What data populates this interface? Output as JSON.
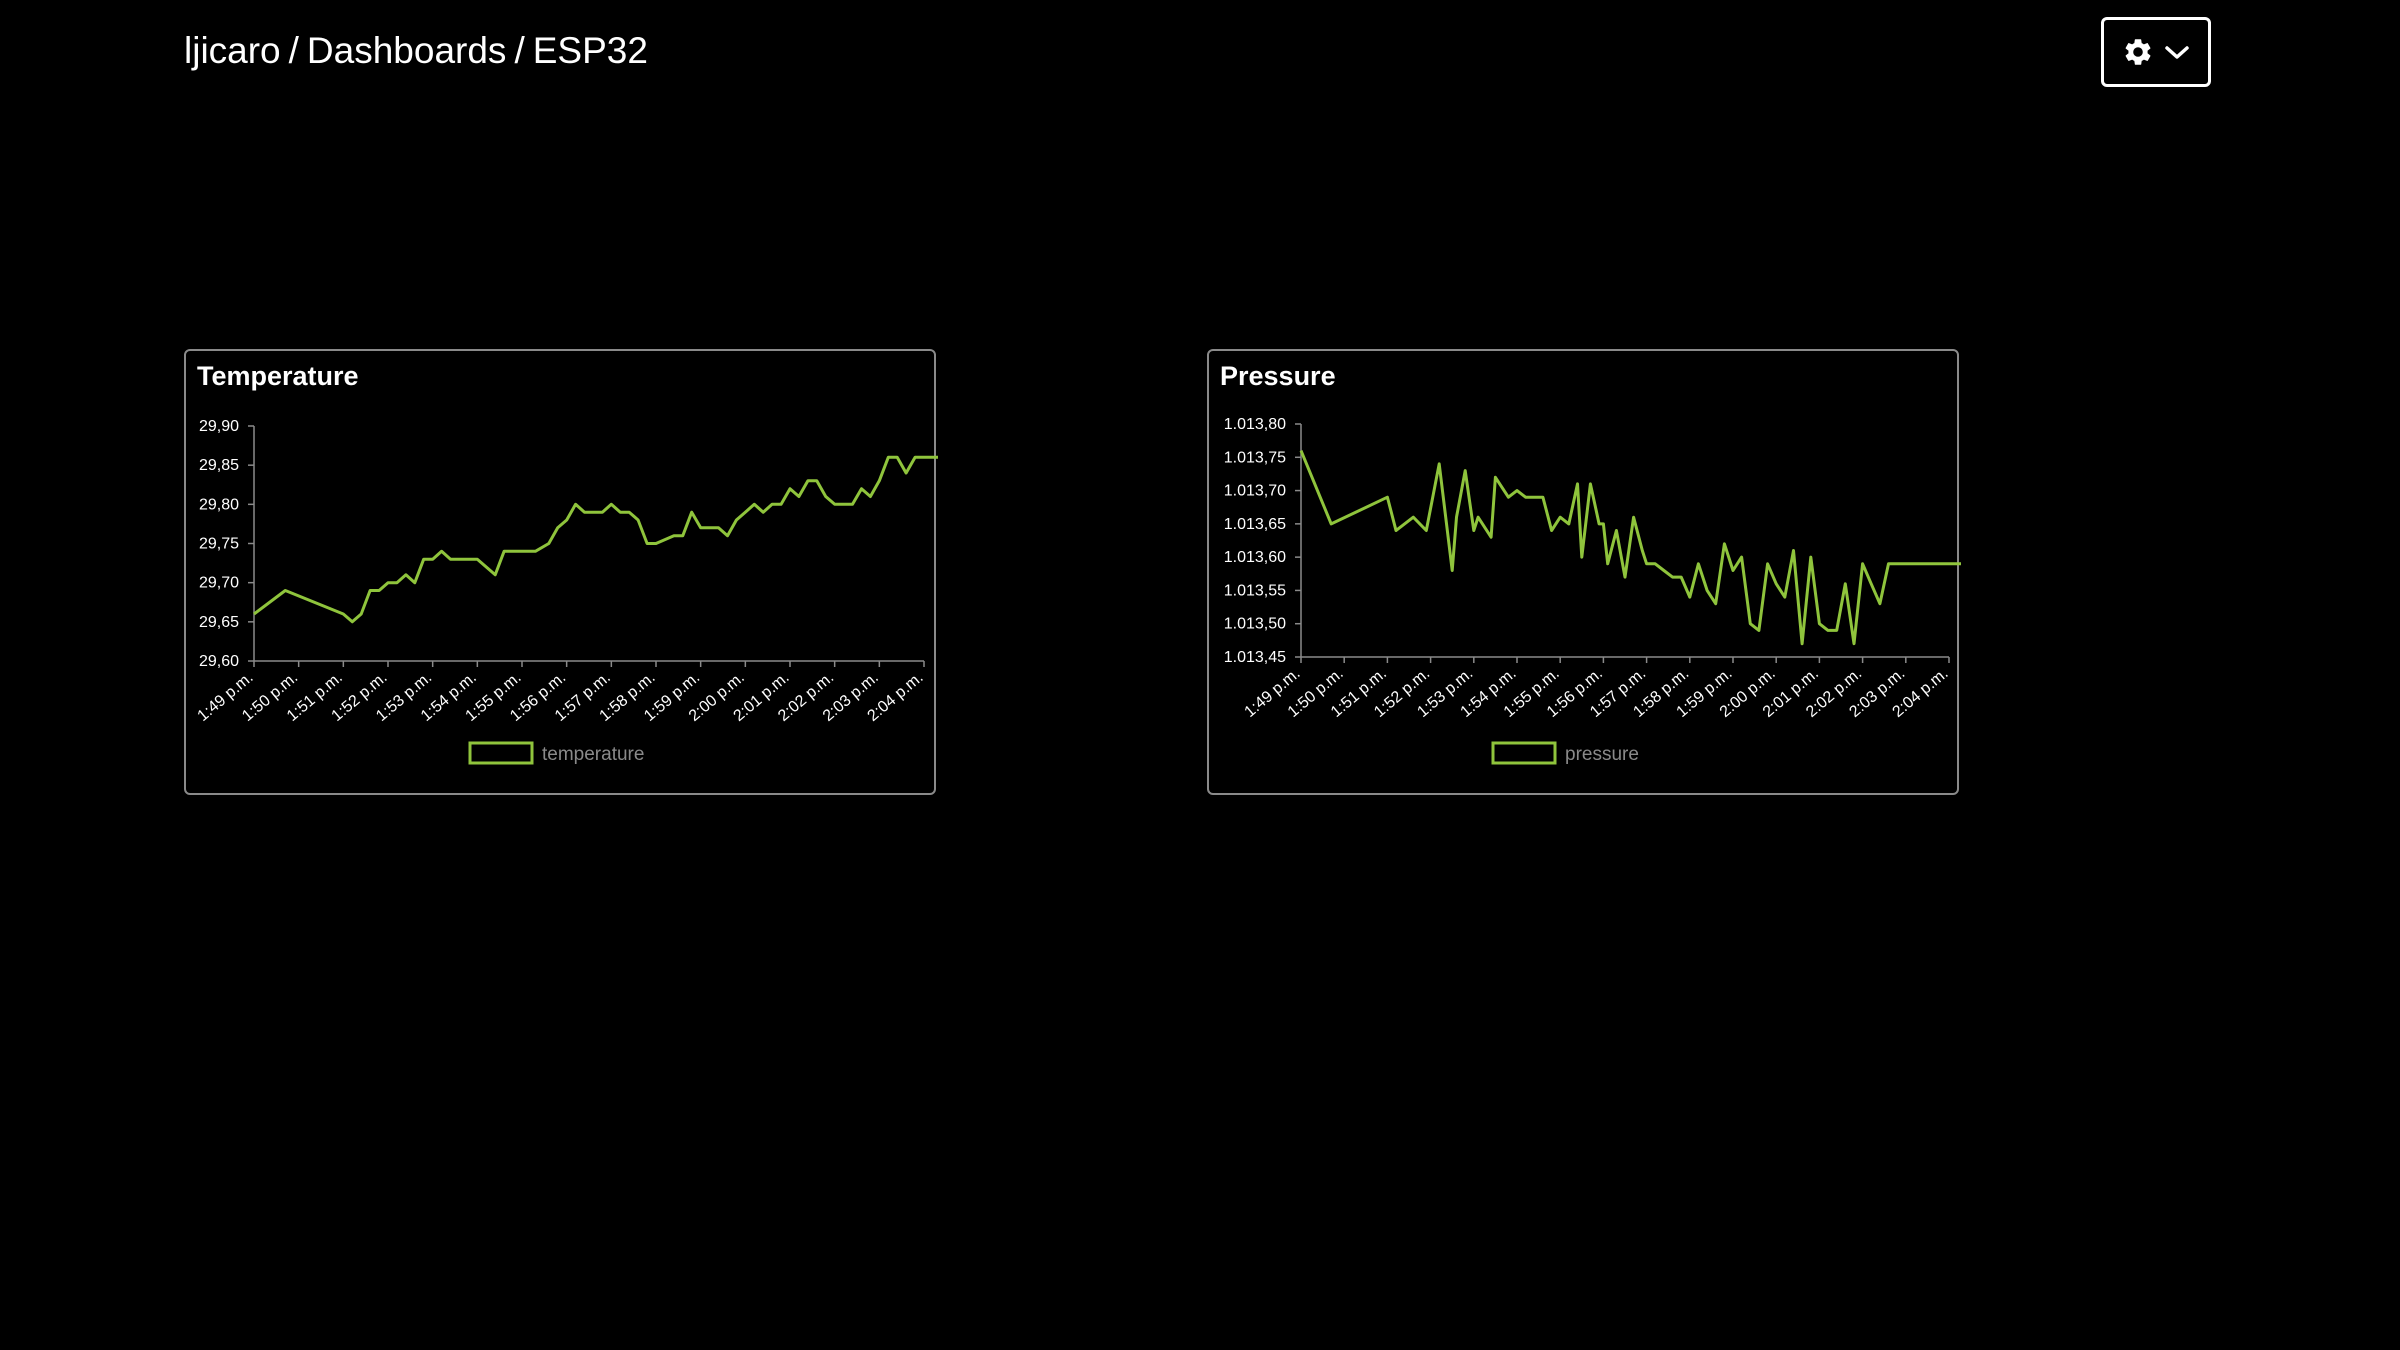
{
  "breadcrumb": {
    "user": "ljicaro",
    "section": "Dashboards",
    "device": "ESP32",
    "separator": "/"
  },
  "settings": {
    "icon": "gear-icon",
    "chevron": "chevron-down-icon"
  },
  "colors": {
    "accent": "#8fc43c",
    "background": "#000000",
    "border": "#8a8a8a"
  },
  "chart_data": [
    {
      "type": "line",
      "title": "Temperature",
      "xlabel": "",
      "ylabel": "",
      "x_ticks": [
        "1:49 p.m.",
        "1:50 p.m.",
        "1:51 p.m.",
        "1:52 p.m.",
        "1:53 p.m.",
        "1:54 p.m.",
        "1:55 p.m.",
        "1:56 p.m.",
        "1:57 p.m.",
        "1:58 p.m.",
        "1:59 p.m.",
        "2:00 p.m.",
        "2:01 p.m.",
        "2:02 p.m.",
        "2:03 p.m.",
        "2:04 p.m."
      ],
      "y_ticks": [
        "29,90",
        "29,85",
        "29,80",
        "29,75",
        "29,70",
        "29,65",
        "29,60"
      ],
      "ylim": [
        29.6,
        29.9
      ],
      "legend": "bottom",
      "grid": false,
      "series": [
        {
          "name": "temperature",
          "color": "#8fc43c",
          "x": [
            0,
            0.7,
            2,
            2.2,
            2.4,
            2.6,
            2.8,
            3,
            3.2,
            3.4,
            3.6,
            3.8,
            4,
            4.2,
            4.4,
            4.6,
            4.8,
            5,
            5.4,
            5.6,
            6.3,
            6.6,
            6.8,
            7,
            7.2,
            7.4,
            7.6,
            7.8,
            8,
            8.2,
            8.4,
            8.6,
            8.8,
            9,
            9.4,
            9.6,
            9.8,
            10,
            10.2,
            10.4,
            10.6,
            10.8,
            11,
            11.2,
            11.4,
            11.6,
            11.8,
            12,
            12.2,
            12.4,
            12.6,
            12.8,
            13,
            13.2,
            13.4,
            13.6,
            13.8,
            14,
            14.2,
            14.4,
            14.6,
            14.8,
            15,
            15.2,
            15.4,
            15.6,
            15.8,
            15.95
          ],
          "y": [
            29.66,
            29.69,
            29.66,
            29.65,
            29.66,
            29.69,
            29.69,
            29.7,
            29.7,
            29.71,
            29.7,
            29.73,
            29.73,
            29.74,
            29.73,
            29.73,
            29.73,
            29.73,
            29.71,
            29.74,
            29.74,
            29.75,
            29.77,
            29.78,
            29.8,
            29.79,
            29.79,
            29.79,
            29.8,
            29.79,
            29.79,
            29.78,
            29.75,
            29.75,
            29.76,
            29.76,
            29.79,
            29.77,
            29.77,
            29.77,
            29.76,
            29.78,
            29.79,
            29.8,
            29.79,
            29.8,
            29.8,
            29.82,
            29.81,
            29.83,
            29.83,
            29.81,
            29.8,
            29.8,
            29.8,
            29.82,
            29.81,
            29.83,
            29.86,
            29.86,
            29.84,
            29.86,
            29.86,
            29.86,
            29.86,
            29.86,
            29.86,
            29.86
          ]
        }
      ]
    },
    {
      "type": "line",
      "title": "Pressure",
      "xlabel": "",
      "ylabel": "",
      "x_ticks": [
        "1:49 p.m.",
        "1:50 p.m.",
        "1:51 p.m.",
        "1:52 p.m.",
        "1:53 p.m.",
        "1:54 p.m.",
        "1:55 p.m.",
        "1:56 p.m.",
        "1:57 p.m.",
        "1:58 p.m.",
        "1:59 p.m.",
        "2:00 p.m.",
        "2:01 p.m.",
        "2:02 p.m.",
        "2:03 p.m.",
        "2:04 p.m."
      ],
      "y_ticks": [
        "1.013,80",
        "1.013,75",
        "1.013,70",
        "1.013,65",
        "1.013,60",
        "1.013,55",
        "1.013,50",
        "1.013,45"
      ],
      "ylim": [
        1013.45,
        1013.8
      ],
      "legend": "bottom",
      "grid": false,
      "series": [
        {
          "name": "pressure",
          "color": "#8fc43c",
          "x": [
            0,
            0.7,
            2,
            2.2,
            2.6,
            2.9,
            3.2,
            3.5,
            3.6,
            3.8,
            4,
            4.1,
            4.4,
            4.5,
            4.8,
            5,
            5.2,
            5.4,
            5.6,
            5.8,
            6,
            6.2,
            6.4,
            6.5,
            6.7,
            6.9,
            7,
            7.1,
            7.3,
            7.5,
            7.7,
            7.9,
            8,
            8.2,
            8.4,
            8.6,
            8.8,
            9,
            9.2,
            9.4,
            9.6,
            9.8,
            10,
            10.2,
            10.4,
            10.6,
            10.8,
            11,
            11.2,
            11.4,
            11.6,
            11.8,
            12,
            12.2,
            12.4,
            12.6,
            12.8,
            13,
            13.2,
            13.4,
            13.6,
            13.8,
            14,
            14.2,
            14.4,
            14.6,
            14.8,
            15,
            15.2,
            15.4,
            15.6,
            15.8,
            16
          ],
          "y": [
            1013.76,
            1013.65,
            1013.69,
            1013.64,
            1013.66,
            1013.64,
            1013.74,
            1013.58,
            1013.66,
            1013.73,
            1013.64,
            1013.66,
            1013.63,
            1013.72,
            1013.69,
            1013.7,
            1013.69,
            1013.69,
            1013.69,
            1013.64,
            1013.66,
            1013.65,
            1013.71,
            1013.6,
            1013.71,
            1013.65,
            1013.65,
            1013.59,
            1013.64,
            1013.57,
            1013.66,
            1013.61,
            1013.59,
            1013.59,
            1013.58,
            1013.57,
            1013.57,
            1013.54,
            1013.59,
            1013.55,
            1013.53,
            1013.62,
            1013.58,
            1013.6,
            1013.5,
            1013.49,
            1013.59,
            1013.56,
            1013.54,
            1013.61,
            1013.47,
            1013.6,
            1013.5,
            1013.49,
            1013.49,
            1013.56,
            1013.47,
            1013.59,
            1013.56,
            1013.53,
            1013.59,
            1013.59,
            1013.59,
            1013.59,
            1013.59,
            1013.59,
            1013.59,
            1013.59,
            1013.59,
            1013.59,
            1013.59,
            1013.59,
            1013.59
          ]
        }
      ]
    }
  ]
}
